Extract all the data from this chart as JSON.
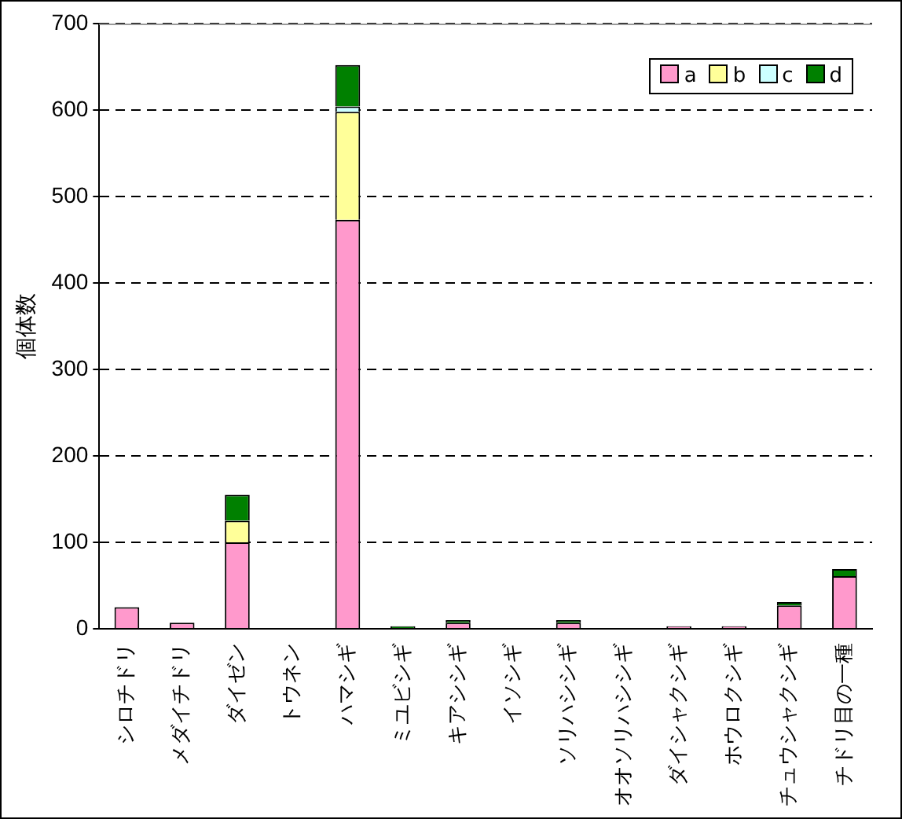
{
  "chart_data": {
    "type": "bar",
    "stacked": true,
    "ylabel": "個体数",
    "categories": [
      "シロチドリ",
      "メダイチドリ",
      "ダイゼン",
      "トウネン",
      "ハマシギ",
      "ミユビシギ",
      "キアシシギ",
      "イソシギ",
      "ソリハシシギ",
      "オオソリハシシギ",
      "ダイシャクシギ",
      "ホウロクシギ",
      "チュウシャクシギ",
      "チドリ目の一種"
    ],
    "series": [
      {
        "name": "a",
        "color": "#ff99cc",
        "values": [
          25,
          7,
          100,
          0,
          473,
          0,
          7,
          0,
          7,
          0,
          3,
          3,
          27,
          61
        ]
      },
      {
        "name": "b",
        "color": "#ffff99",
        "values": [
          0,
          0,
          25,
          0,
          125,
          0,
          0,
          0,
          0,
          0,
          0,
          0,
          0,
          0
        ]
      },
      {
        "name": "c",
        "color": "#ccffff",
        "values": [
          0,
          0,
          0,
          0,
          6,
          0,
          0,
          0,
          0,
          0,
          0,
          0,
          0,
          0
        ]
      },
      {
        "name": "d",
        "color": "#008000",
        "values": [
          0,
          0,
          30,
          0,
          48,
          3,
          3,
          0,
          3,
          0,
          0,
          0,
          4,
          8
        ]
      }
    ],
    "ylim": [
      0,
      700
    ],
    "yticks": [
      0,
      100,
      200,
      300,
      400,
      500,
      600,
      700
    ],
    "grid": "y",
    "legend": "top right"
  }
}
